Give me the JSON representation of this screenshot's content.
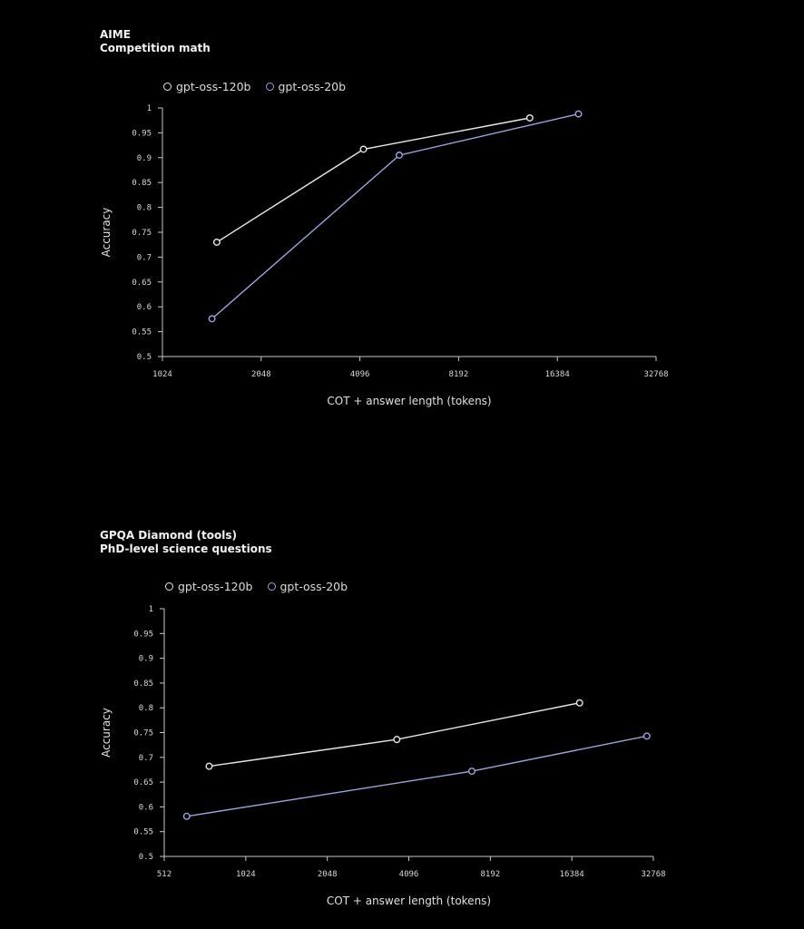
{
  "colors": {
    "series1": "#e6e6e6",
    "series2": "#9aa5dc",
    "axis": "#c8c8c8"
  },
  "chart_data": [
    {
      "type": "line",
      "title": "AIME",
      "subtitle": "Competition math",
      "xlabel": "COT + answer length (tokens)",
      "ylabel": "Accuracy",
      "xscale": "log2",
      "xticks": [
        1024,
        2048,
        4096,
        8192,
        16384,
        32768
      ],
      "xlim": [
        1024,
        32768
      ],
      "yticks": [
        0.5,
        0.55,
        0.6,
        0.65,
        0.7,
        0.75,
        0.8,
        0.85,
        0.9,
        0.95,
        1
      ],
      "ylim": [
        0.5,
        1
      ],
      "legend_position": "top-left",
      "series": [
        {
          "name": "gpt-oss-120b",
          "x": [
            1500,
            4200,
            13500
          ],
          "y": [
            0.73,
            0.917,
            0.98
          ]
        },
        {
          "name": "gpt-oss-20b",
          "x": [
            1450,
            5400,
            19000
          ],
          "y": [
            0.576,
            0.905,
            0.988
          ]
        }
      ]
    },
    {
      "type": "line",
      "title": "GPQA Diamond (tools)",
      "subtitle": "PhD-level science questions",
      "xlabel": "COT + answer length (tokens)",
      "ylabel": "Accuracy",
      "xscale": "log2",
      "xticks": [
        512,
        1024,
        2048,
        4096,
        8192,
        16384,
        32768
      ],
      "xlim": [
        512,
        32768
      ],
      "yticks": [
        0.5,
        0.55,
        0.6,
        0.65,
        0.7,
        0.75,
        0.8,
        0.85,
        0.9,
        0.95,
        1
      ],
      "ylim": [
        0.5,
        1
      ],
      "legend_position": "top-left",
      "series": [
        {
          "name": "gpt-oss-120b",
          "x": [
            750,
            3700,
            17500
          ],
          "y": [
            0.682,
            0.736,
            0.81
          ]
        },
        {
          "name": "gpt-oss-20b",
          "x": [
            620,
            7000,
            31000
          ],
          "y": [
            0.581,
            0.672,
            0.743
          ]
        }
      ]
    }
  ]
}
